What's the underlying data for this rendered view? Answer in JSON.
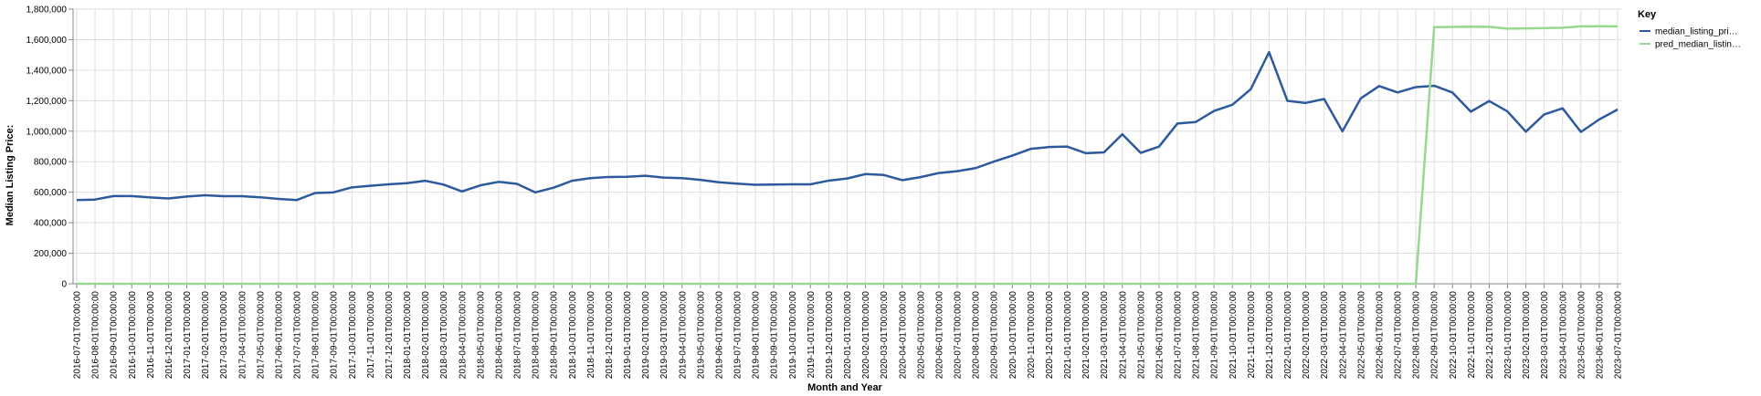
{
  "chart_data": {
    "type": "line",
    "xlabel": "Month and Year",
    "ylabel": "Median Listing Price:",
    "ylim": [
      0,
      1800000
    ],
    "yticks": [
      "0",
      "200,000",
      "400,000",
      "600,000",
      "800,000",
      "1,000,000",
      "1,200,000",
      "1,400,000",
      "1,600,000",
      "1,800,000"
    ],
    "grid": true,
    "legend": {
      "title": "Key",
      "placement": "right"
    },
    "x": [
      "2016-07-01T00:00:00",
      "2016-08-01T00:00:00",
      "2016-09-01T00:00:00",
      "2016-10-01T00:00:00",
      "2016-11-01T00:00:00",
      "2016-12-01T00:00:00",
      "2017-01-01T00:00:00",
      "2017-02-01T00:00:00",
      "2017-03-01T00:00:00",
      "2017-04-01T00:00:00",
      "2017-05-01T00:00:00",
      "2017-06-01T00:00:00",
      "2017-07-01T00:00:00",
      "2017-08-01T00:00:00",
      "2017-09-01T00:00:00",
      "2017-10-01T00:00:00",
      "2017-11-01T00:00:00",
      "2017-12-01T00:00:00",
      "2018-01-01T00:00:00",
      "2018-02-01T00:00:00",
      "2018-03-01T00:00:00",
      "2018-04-01T00:00:00",
      "2018-05-01T00:00:00",
      "2018-06-01T00:00:00",
      "2018-07-01T00:00:00",
      "2018-08-01T00:00:00",
      "2018-09-01T00:00:00",
      "2018-10-01T00:00:00",
      "2018-11-01T00:00:00",
      "2018-12-01T00:00:00",
      "2019-01-01T00:00:00",
      "2019-02-01T00:00:00",
      "2019-03-01T00:00:00",
      "2019-04-01T00:00:00",
      "2019-05-01T00:00:00",
      "2019-06-01T00:00:00",
      "2019-07-01T00:00:00",
      "2019-08-01T00:00:00",
      "2019-09-01T00:00:00",
      "2019-10-01T00:00:00",
      "2019-11-01T00:00:00",
      "2019-12-01T00:00:00",
      "2020-01-01T00:00:00",
      "2020-02-01T00:00:00",
      "2020-03-01T00:00:00",
      "2020-04-01T00:00:00",
      "2020-05-01T00:00:00",
      "2020-06-01T00:00:00",
      "2020-07-01T00:00:00",
      "2020-08-01T00:00:00",
      "2020-09-01T00:00:00",
      "2020-10-01T00:00:00",
      "2020-11-01T00:00:00",
      "2020-12-01T00:00:00",
      "2021-01-01T00:00:00",
      "2021-02-01T00:00:00",
      "2021-03-01T00:00:00",
      "2021-04-01T00:00:00",
      "2021-05-01T00:00:00",
      "2021-06-01T00:00:00",
      "2021-07-01T00:00:00",
      "2021-08-01T00:00:00",
      "2021-09-01T00:00:00",
      "2021-10-01T00:00:00",
      "2021-11-01T00:00:00",
      "2021-12-01T00:00:00",
      "2022-01-01T00:00:00",
      "2022-02-01T00:00:00",
      "2022-03-01T00:00:00",
      "2022-04-01T00:00:00",
      "2022-05-01T00:00:00",
      "2022-06-01T00:00:00",
      "2022-07-01T00:00:00",
      "2022-08-01T00:00:00",
      "2022-09-01T00:00:00",
      "2022-10-01T00:00:00",
      "2022-11-01T00:00:00",
      "2022-12-01T00:00:00",
      "2023-01-01T00:00:00",
      "2023-02-01T00:00:00",
      "2023-03-01T00:00:00",
      "2023-04-01T00:00:00",
      "2023-05-01T00:00:00",
      "2023-06-01T00:00:00",
      "2023-07-01T00:00:00"
    ],
    "series": [
      {
        "name": "median_listing_pri…",
        "color": "#2c5a9c",
        "values": [
          549000,
          552000,
          575000,
          575000,
          566000,
          559000,
          572000,
          580000,
          574000,
          574000,
          567000,
          556000,
          549000,
          595000,
          599000,
          632000,
          642000,
          652000,
          659000,
          675000,
          650000,
          605000,
          645000,
          668000,
          655000,
          599000,
          630000,
          675000,
          692000,
          700000,
          701000,
          708000,
          696000,
          692000,
          681000,
          665000,
          656000,
          649000,
          650000,
          652000,
          652000,
          676000,
          690000,
          719000,
          713000,
          679000,
          699000,
          726000,
          738000,
          758000,
          801000,
          840000,
          884000,
          896000,
          899000,
          856000,
          861000,
          980000,
          858000,
          899000,
          1050000,
          1060000,
          1133000,
          1173000,
          1275000,
          1518000,
          1199000,
          1185000,
          1211000,
          999000,
          1215000,
          1296000,
          1254000,
          1289000,
          1298000,
          1253000,
          1128000,
          1198000,
          1129000,
          997000,
          1110000,
          1150000,
          995000,
          1077000,
          1142000
        ]
      },
      {
        "name": "pred_median_listin…",
        "color": "#98d78f",
        "values": [
          0,
          0,
          0,
          0,
          0,
          0,
          0,
          0,
          0,
          0,
          0,
          0,
          0,
          0,
          0,
          0,
          0,
          0,
          0,
          0,
          0,
          0,
          0,
          0,
          0,
          0,
          0,
          0,
          0,
          0,
          0,
          0,
          0,
          0,
          0,
          0,
          0,
          0,
          0,
          0,
          0,
          0,
          0,
          0,
          0,
          0,
          0,
          0,
          0,
          0,
          0,
          0,
          0,
          0,
          0,
          0,
          0,
          0,
          0,
          0,
          0,
          0,
          0,
          0,
          0,
          0,
          0,
          0,
          0,
          0,
          0,
          0,
          0,
          0,
          1682000,
          1683000,
          1685000,
          1684000,
          1672000,
          1674000,
          1676000,
          1678000,
          1687000,
          1688000,
          1687000
        ]
      }
    ]
  }
}
